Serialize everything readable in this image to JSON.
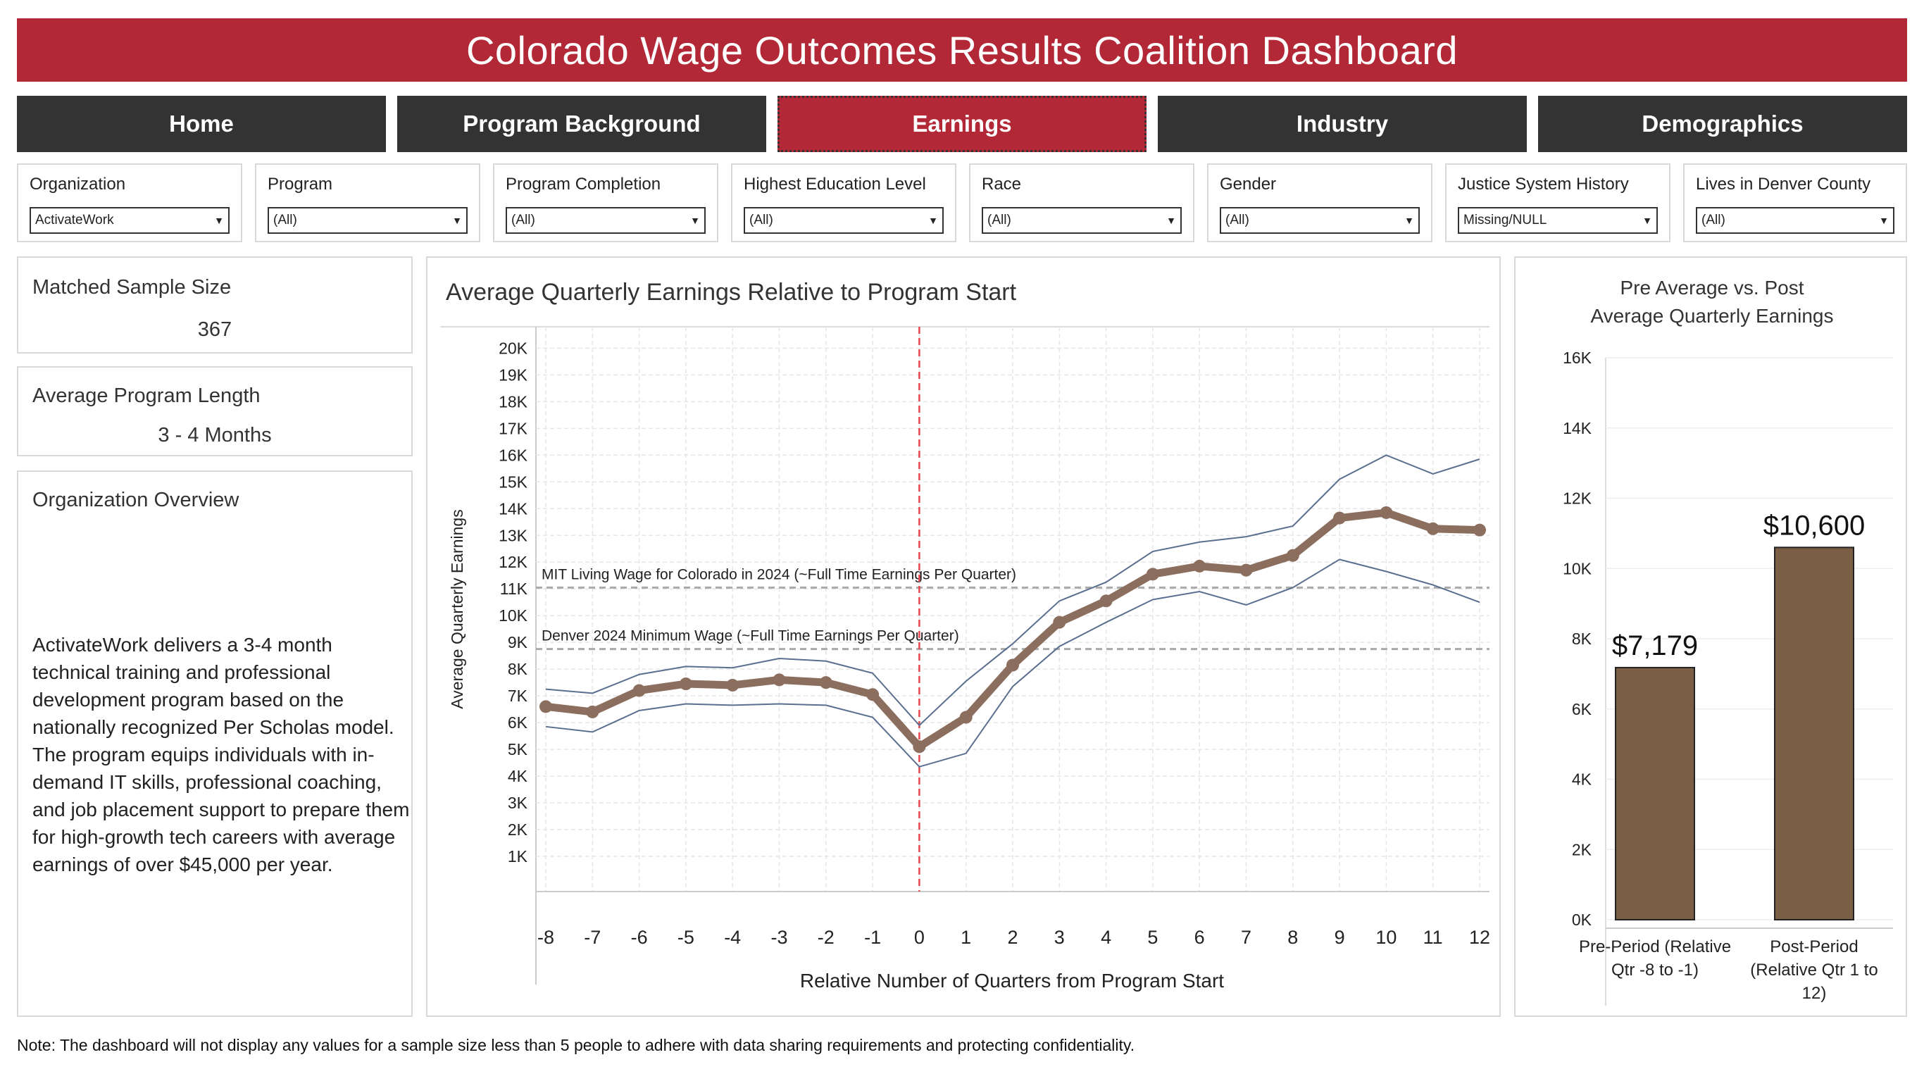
{
  "title": "Colorado Wage Outcomes Results Coalition Dashboard",
  "nav": {
    "tabs": [
      {
        "label": "Home"
      },
      {
        "label": "Program Background"
      },
      {
        "label": "Earnings"
      },
      {
        "label": "Industry"
      },
      {
        "label": "Demographics"
      }
    ],
    "active": "Earnings"
  },
  "filters": [
    {
      "label": "Organization",
      "value": "ActivateWork"
    },
    {
      "label": "Program",
      "value": "(All)"
    },
    {
      "label": "Program Completion",
      "value": "(All)"
    },
    {
      "label": "Highest Education Level",
      "value": "(All)"
    },
    {
      "label": "Race",
      "value": "(All)"
    },
    {
      "label": "Gender",
      "value": "(All)"
    },
    {
      "label": "Justice System History",
      "value": "Missing/NULL"
    },
    {
      "label": "Lives in Denver County",
      "value": "(All)"
    }
  ],
  "cards": {
    "sample_size": {
      "title": "Matched Sample Size",
      "value": "367"
    },
    "program_length": {
      "title": "Average Program Length",
      "value": "3 - 4 Months"
    },
    "overview": {
      "title": "Organization Overview",
      "text": "ActivateWork delivers a 3-4 month technical training and professional development program based on the nationally recognized Per Scholas model. The program equips individuals with in-demand IT skills, professional coaching, and job placement support to prepare them for high-growth tech careers with average earnings of over $45,000 per year."
    }
  },
  "colors": {
    "brand_red": "#b22836",
    "nav_dark": "#333333",
    "line_main": "#8c6e5e",
    "line_band": "#5a6f8f",
    "bar_fill": "#7a5f44",
    "ref_line": "#aaaaaa",
    "start_line": "#e0474c"
  },
  "chart_data": [
    {
      "type": "line",
      "title": "Average Quarterly Earnings Relative to Program Start",
      "xlabel": "Relative Number of Quarters from Program Start",
      "ylabel": "Average Quarterly Earnings",
      "x": [
        -8,
        -7,
        -6,
        -5,
        -4,
        -3,
        -2,
        -1,
        0,
        1,
        2,
        3,
        4,
        5,
        6,
        7,
        8,
        9,
        10,
        11,
        12
      ],
      "x_tick_labels": [
        "-8",
        "-7",
        "-6",
        "-5",
        "-4",
        "-3",
        "-2",
        "-1",
        "0",
        "1",
        "2",
        "3",
        "4",
        "5",
        "6",
        "7",
        "8",
        "9",
        "10",
        "11",
        "12"
      ],
      "y_ticks": [
        1000,
        2000,
        3000,
        4000,
        5000,
        6000,
        7000,
        8000,
        9000,
        10000,
        11000,
        12000,
        13000,
        14000,
        15000,
        16000,
        17000,
        18000,
        19000,
        20000
      ],
      "y_tick_labels": [
        "1K",
        "2K",
        "3K",
        "4K",
        "5K",
        "6K",
        "7K",
        "8K",
        "9K",
        "10K",
        "11K",
        "12K",
        "13K",
        "14K",
        "15K",
        "16K",
        "17K",
        "18K",
        "19K",
        "20K"
      ],
      "ylim": [
        0,
        20800
      ],
      "grid": true,
      "series": [
        {
          "name": "Average",
          "values": [
            6600,
            6400,
            7200,
            7450,
            7400,
            7600,
            7500,
            7050,
            5100,
            6200,
            8150,
            9750,
            10550,
            11550,
            11850,
            11700,
            12250,
            13650,
            13850,
            13250,
            13200
          ]
        },
        {
          "name": "Upper bound",
          "values": [
            7250,
            7100,
            7800,
            8100,
            8050,
            8400,
            8300,
            7850,
            5900,
            7550,
            8950,
            10550,
            11250,
            12400,
            12750,
            12950,
            13350,
            15100,
            16000,
            15300,
            15850
          ]
        },
        {
          "name": "Lower bound",
          "values": [
            5850,
            5650,
            6450,
            6700,
            6650,
            6700,
            6650,
            6200,
            4350,
            4850,
            7350,
            8850,
            9750,
            10600,
            10900,
            10400,
            11050,
            12100,
            11650,
            11150,
            10500
          ]
        }
      ],
      "reference_lines": [
        {
          "label": "MIT Living Wage for Colorado in 2024 (~Full Time Earnings Per Quarter)",
          "value": 11050
        },
        {
          "label": "Denver 2024 Minimum Wage (~Full Time Earnings Per Quarter)",
          "value": 8750
        }
      ],
      "program_start_x": 0
    },
    {
      "type": "bar",
      "title": "Pre Average vs. Post Average Quarterly Earnings",
      "categories": [
        "Pre-Period (Relative Qtr -8 to -1)",
        "Post-Period (Relative Qtr 1 to 12)"
      ],
      "values": [
        7179,
        10600
      ],
      "data_labels": [
        "$7,179",
        "$10,600"
      ],
      "y_ticks": [
        0,
        2000,
        4000,
        6000,
        8000,
        10000,
        12000,
        14000,
        16000
      ],
      "y_tick_labels": [
        "0K",
        "2K",
        "4K",
        "6K",
        "8K",
        "10K",
        "12K",
        "14K",
        "16K"
      ],
      "ylim": [
        0,
        16000
      ],
      "grid": true
    }
  ],
  "note": "Note: The dashboard will not display any values for a sample size less than 5 people to adhere with data sharing requirements and protecting confidentiality."
}
